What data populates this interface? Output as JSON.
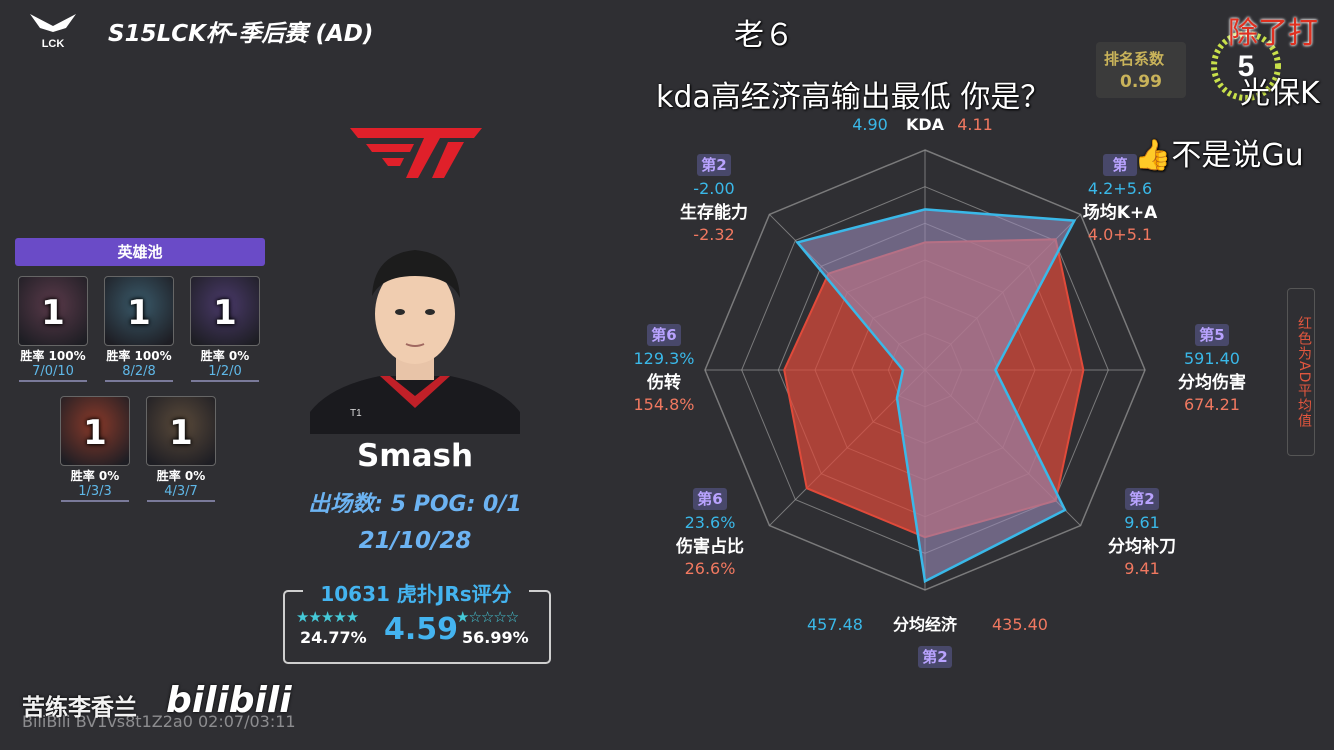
{
  "header": {
    "title": "S15LCK杯-季后赛 (AD)",
    "league_logo_text": "LCK"
  },
  "champion_pool": {
    "title": "英雄池",
    "champions": [
      {
        "icon": "champion-portrait-1",
        "count": "1",
        "win_rate": "胜率 100%",
        "kda": "7/0/10",
        "color": "#5a3a4a"
      },
      {
        "icon": "champion-portrait-2",
        "count": "1",
        "win_rate": "胜率 100%",
        "kda": "8/2/8",
        "color": "#3a5a6a"
      },
      {
        "icon": "champion-portrait-3",
        "count": "1",
        "win_rate": "胜率 0%",
        "kda": "1/2/0",
        "color": "#4a3a6a"
      },
      {
        "icon": "champion-portrait-4",
        "count": "1",
        "win_rate": "胜率 0%",
        "kda": "1/3/3",
        "color": "#8a3a2a"
      },
      {
        "icon": "champion-portrait-5",
        "count": "1",
        "win_rate": "胜率 0%",
        "kda": "4/3/7",
        "color": "#5a4a3a"
      }
    ]
  },
  "player": {
    "name": "Smash",
    "games_pog": "出场数: 5  POG: 0/1",
    "date": "21/10/28",
    "jersey_brand": "T1"
  },
  "rating": {
    "title": "10631 虎扑JRs评分",
    "score": "4.59",
    "five_star_pct": "24.77%",
    "one_star_pct": "56.99%",
    "five_stars": "★★★★★",
    "one_star": "★☆☆☆☆"
  },
  "rank_coefficient": {
    "label": "排名系数",
    "value": "0.99"
  },
  "side_note": "红色为AD平均值",
  "radar": {
    "colors": {
      "player": "#3ab8e8",
      "average": "#e04a3a",
      "average_light": "#9a8ab8",
      "grid": "#bfbfbf"
    },
    "axes": [
      {
        "name": "KDA",
        "player": "4.90",
        "average": "4.11",
        "rank": "",
        "player_frac": 0.73,
        "average_frac": 0.58
      },
      {
        "name": "场均K+A",
        "player": "4.2+5.6",
        "average": "4.0+5.1",
        "rank": "第",
        "player_frac": 0.96,
        "average_frac": 0.84
      },
      {
        "name": "分均伤害",
        "player": "591.40",
        "average": "674.21",
        "rank": "第5",
        "player_frac": 0.32,
        "average_frac": 0.72
      },
      {
        "name": "分均补刀",
        "player": "9.61",
        "average": "9.41",
        "rank": "第2",
        "player_frac": 0.9,
        "average_frac": 0.84
      },
      {
        "name": "分均经济",
        "player": "457.48",
        "average": "435.40",
        "rank": "第2",
        "player_frac": 0.96,
        "average_frac": 0.76
      },
      {
        "name": "伤害占比",
        "player": "23.6%",
        "average": "26.6%",
        "rank": "第6",
        "player_frac": 0.18,
        "average_frac": 0.76
      },
      {
        "name": "伤转",
        "player": "129.3%",
        "average": "154.8%",
        "rank": "第6",
        "player_frac": 0.1,
        "average_frac": 0.64
      },
      {
        "name": "生存能力",
        "player": "-2.00",
        "average": "-2.32",
        "rank": "第2",
        "player_frac": 0.82,
        "average_frac": 0.62
      }
    ]
  },
  "danmaku": [
    {
      "text": "老６"
    },
    {
      "text": "kda高经济高输出最低 你是？"
    },
    {
      "text": "除了打"
    },
    {
      "text": "光保K"
    },
    {
      "text": "👍不是说Gu"
    }
  ],
  "timer_badge": "5",
  "footer": {
    "uploader": "苦练李香兰",
    "platform_logo": "bilibili",
    "watermark": "BiliBili BV1vs8t1Z2a0 02:07/03:11"
  }
}
